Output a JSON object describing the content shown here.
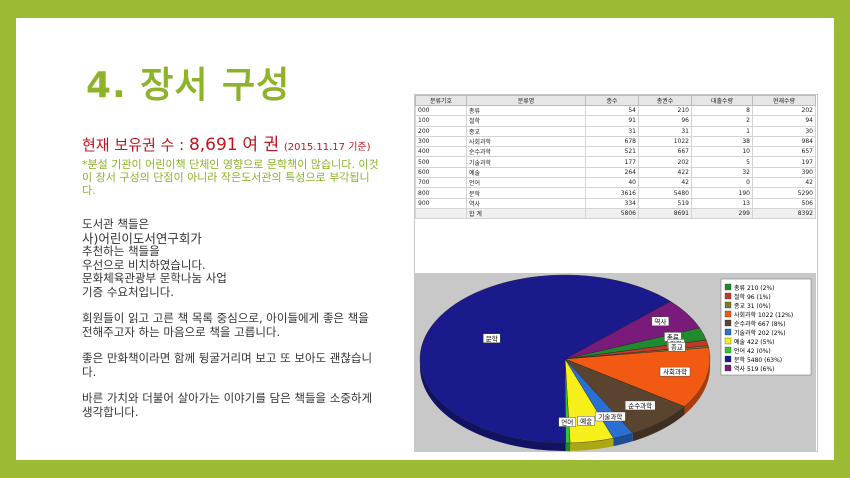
{
  "title": "4. 장서 구성",
  "holdings": {
    "label": "현재 보유권 수 :",
    "value": "8,691",
    "unit": "여 권",
    "date": "(2015.11.17 기준)"
  },
  "note": "*분설 기관이 어린이책 단체인 영향으로 문학책이 많습니다. 이것이 장서 구성의 단점이 아니라 작은도서관의 특성으로 부각됩니다.",
  "body": {
    "p1": [
      "도서관 책들은",
      "사)어린이도서연구회가",
      "추천하는 책들을",
      "우선으로 비치하였습니다.",
      "문화체육관광부 문학나눔 사업",
      "기증 수요처입니다."
    ],
    "p2": "회원들이 읽고 고른 책 목록 중심으로, 아이들에게 좋은 책을 전해주고자 하는 마음으로 책을 고릅니다.",
    "p3": "좋은 만화책이라면 함께 뒹굴거리며 보고 또 보아도 괜찮습니다.",
    "p4": "바른 가치와 더불어 살아가는 이야기를 담은 책들을 소중하게 생각합니다."
  },
  "table": {
    "headers": [
      "분류기호",
      "분류명",
      "종수",
      "총권수",
      "대출수량",
      "현재수량"
    ],
    "rows": [
      [
        "000",
        "총류",
        "54",
        "210",
        "8",
        "202"
      ],
      [
        "100",
        "철학",
        "91",
        "96",
        "2",
        "94"
      ],
      [
        "200",
        "종교",
        "31",
        "31",
        "1",
        "30"
      ],
      [
        "300",
        "사회과학",
        "678",
        "1022",
        "38",
        "984"
      ],
      [
        "400",
        "순수과학",
        "521",
        "667",
        "10",
        "657"
      ],
      [
        "500",
        "기술과학",
        "177",
        "202",
        "5",
        "197"
      ],
      [
        "600",
        "예술",
        "264",
        "422",
        "32",
        "390"
      ],
      [
        "700",
        "언어",
        "40",
        "42",
        "0",
        "42"
      ],
      [
        "800",
        "문학",
        "3616",
        "5480",
        "190",
        "5290"
      ],
      [
        "900",
        "역사",
        "334",
        "519",
        "13",
        "506"
      ]
    ],
    "total": [
      "",
      "합 계",
      "5806",
      "8691",
      "299",
      "8392"
    ]
  },
  "chart_data": {
    "type": "pie",
    "categories": [
      "총류",
      "철학",
      "종교",
      "사회과학",
      "순수과학",
      "기술과학",
      "예술",
      "언어",
      "문학",
      "역사"
    ],
    "values": [
      210,
      96,
      31,
      1022,
      667,
      202,
      422,
      42,
      5480,
      519
    ],
    "legend": [
      "총류 210 (2%)",
      "철학 96 (1%)",
      "종교 31 (0%)",
      "사회과학 1022 (12%)",
      "순수과학 667 (8%)",
      "기술과학 202 (2%)",
      "예술 422 (5%)",
      "언어 42 (0%)",
      "문학 5480 (63%)",
      "역사 519 (6%)"
    ],
    "colors": [
      "#1f8a2e",
      "#c0392b",
      "#7a7a2a",
      "#f25a13",
      "#5a4430",
      "#2a6fd6",
      "#f7ef1a",
      "#2fc72f",
      "#1a1a8c",
      "#7a1a7a"
    ],
    "legend_position": "right"
  }
}
